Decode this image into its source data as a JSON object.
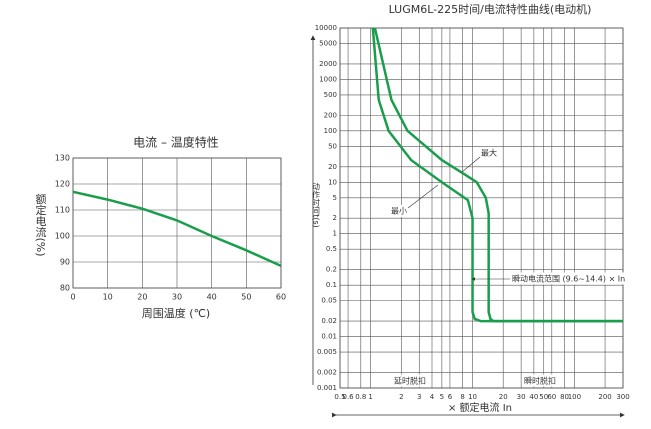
{
  "chart_data": [
    {
      "type": "line",
      "title": "电流 – 温度特性",
      "x_label": "周围温度 (℃)",
      "y_label": "额定电流(%)",
      "x": [
        0,
        10,
        20,
        30,
        40,
        50,
        60
      ],
      "series": [
        {
          "color": "#1a9e4b",
          "values": [
            117,
            114,
            110.5,
            106,
            100,
            94.5,
            88.5
          ]
        }
      ],
      "xlim": [
        0,
        60
      ],
      "xticks": [
        0,
        10,
        20,
        30,
        40,
        50,
        60
      ],
      "ylim": [
        80,
        130
      ],
      "yticks": [
        80,
        90,
        100,
        110,
        120,
        130
      ],
      "grid": true,
      "log_scale": false
    },
    {
      "type": "line",
      "title": "LUGM6L-225时间/电流特性曲线(电动机)",
      "x_label": "× 额定电流 In",
      "y_label": "动作时间t(s)",
      "series": [
        {
          "name": "最大",
          "color": "#1a9e4b",
          "x": [
            1.1,
            1.6,
            2.3,
            5,
            8.5,
            11,
            13.5,
            14.4,
            14.4,
            15,
            16,
            300
          ],
          "values": [
            10000,
            400,
            100,
            27,
            14,
            10,
            5,
            2.5,
            0.03,
            0.022,
            0.02,
            0.02
          ]
        },
        {
          "name": "最小",
          "color": "#1a9e4b",
          "x": [
            1.05,
            1.2,
            1.5,
            2.5,
            5,
            9,
            10,
            10,
            10.5,
            12,
            300
          ],
          "values": [
            10000,
            400,
            100,
            27,
            10,
            4.5,
            2,
            0.03,
            0.022,
            0.02,
            0.02
          ]
        }
      ],
      "xlim": [
        0.5,
        300
      ],
      "xticks": [
        0.5,
        0.6,
        0.8,
        1,
        2,
        3,
        4,
        5,
        6,
        8,
        10,
        20,
        30,
        40,
        50,
        60,
        80,
        100,
        200,
        300
      ],
      "ylim": [
        0.001,
        10000
      ],
      "yticks": [
        0.001,
        0.002,
        0.005,
        0.01,
        0.02,
        0.05,
        0.1,
        0.2,
        0.5,
        1,
        2,
        5,
        10,
        20,
        50,
        100,
        200,
        500,
        1000,
        2000,
        5000,
        10000
      ],
      "grid": true,
      "log_scale": true,
      "annotations": [
        "瞬动电流范围 (9.6~14.4) × In",
        "延时脱扣",
        "瞬时脱扣"
      ]
    }
  ]
}
